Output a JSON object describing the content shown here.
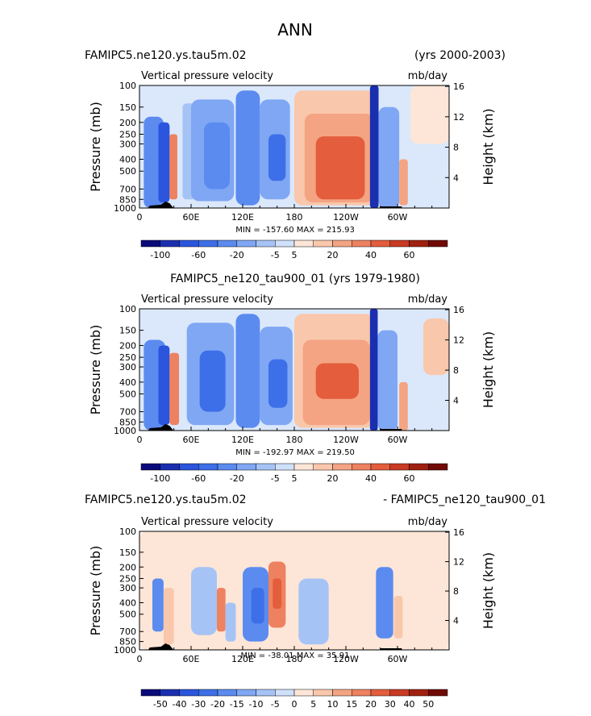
{
  "figure": {
    "title": "ANN",
    "colors": {
      "scale_main": [
        "#0a0a7a",
        "#1a2fb0",
        "#2a55dc",
        "#3d6fe8",
        "#5b8bef",
        "#7fa7f3",
        "#a6c3f6",
        "#cfe0fa",
        "#fde6d7",
        "#f9c7ab",
        "#f4a483",
        "#ee8160",
        "#e45d3c",
        "#c83a22",
        "#a0200f",
        "#700a05"
      ],
      "scale_diff": [
        "#0a0a7a",
        "#1a2fb0",
        "#2a55dc",
        "#3d6fe8",
        "#5b8bef",
        "#7fa7f3",
        "#a6c3f6",
        "#cfe0fa",
        "#fde6d7",
        "#f9c7ab",
        "#f4a483",
        "#ee8160",
        "#e45d3c",
        "#c83a22",
        "#a0200f",
        "#700a05"
      ]
    }
  },
  "chart_data": [
    {
      "type": "heatmap",
      "header_left": "FAMIPC5.ne120.ys.tau5m.02",
      "header_right": "(yrs 2000-2003)",
      "title": "Vertical pressure velocity",
      "units": "mb/day",
      "xlabel": "",
      "ylabel": "Pressure (mb)",
      "ylabel_right": "Height (km)",
      "xticks": [
        "0",
        "60E",
        "120E",
        "180",
        "120W",
        "60W"
      ],
      "xlim": [
        0,
        360
      ],
      "x_tick_values": [
        0,
        60,
        120,
        180,
        240,
        300
      ],
      "yticks": [
        "100",
        "150",
        "200",
        "250",
        "300",
        "400",
        "500",
        "700",
        "850",
        "1000"
      ],
      "y_tick_values": [
        100,
        150,
        200,
        250,
        300,
        400,
        500,
        700,
        850,
        1000
      ],
      "ylim": [
        100,
        1000
      ],
      "yticks_right": [
        "16",
        "12",
        "8",
        "4"
      ],
      "y_right_values": [
        16,
        12,
        8,
        4
      ],
      "stats": "MIN = -157.60   MAX = 215.93",
      "min": -157.6,
      "max": 215.93,
      "colorbar_labels": [
        "-100",
        "-60",
        "-20",
        "-5",
        "5",
        "20",
        "40",
        "60"
      ],
      "colorbar_key": "scale_main",
      "regions": [
        {
          "x0": 5,
          "x1": 28,
          "p0": 180,
          "p1": 1000,
          "v": -40
        },
        {
          "x0": 22,
          "x1": 35,
          "p0": 200,
          "p1": 900,
          "v": -80
        },
        {
          "x0": 35,
          "x1": 44,
          "p0": 250,
          "p1": 850,
          "v": 30
        },
        {
          "x0": 50,
          "x1": 65,
          "p0": 140,
          "p1": 850,
          "v": -10
        },
        {
          "x0": 60,
          "x1": 110,
          "p0": 130,
          "p1": 880,
          "v": -30
        },
        {
          "x0": 75,
          "x1": 105,
          "p0": 200,
          "p1": 700,
          "v": -55
        },
        {
          "x0": 112,
          "x1": 140,
          "p0": 110,
          "p1": 950,
          "v": -45
        },
        {
          "x0": 140,
          "x1": 175,
          "p0": 130,
          "p1": 850,
          "v": -35
        },
        {
          "x0": 150,
          "x1": 170,
          "p0": 250,
          "p1": 600,
          "v": -60
        },
        {
          "x0": 180,
          "x1": 275,
          "p0": 110,
          "p1": 950,
          "v": 8
        },
        {
          "x0": 192,
          "x1": 272,
          "p0": 170,
          "p1": 900,
          "v": 20
        },
        {
          "x0": 205,
          "x1": 262,
          "p0": 260,
          "p1": 850,
          "v": 35
        },
        {
          "x0": 268,
          "x1": 278,
          "p0": 100,
          "p1": 1000,
          "v": -100
        },
        {
          "x0": 278,
          "x1": 302,
          "p0": 150,
          "p1": 1000,
          "v": -35
        },
        {
          "x0": 302,
          "x1": 312,
          "p0": 400,
          "p1": 950,
          "v": 12
        },
        {
          "x0": 315,
          "x1": 360,
          "p0": 100,
          "p1": 300,
          "v": 5
        }
      ]
    },
    {
      "type": "heatmap",
      "header_center": "FAMIPC5_ne120_tau900_01 (yrs 1979-1980)",
      "title": "Vertical pressure velocity",
      "units": "mb/day",
      "xlabel": "",
      "ylabel": "Pressure (mb)",
      "ylabel_right": "Height (km)",
      "xticks": [
        "0",
        "60E",
        "120E",
        "180",
        "120W",
        "60W"
      ],
      "xlim": [
        0,
        360
      ],
      "x_tick_values": [
        0,
        60,
        120,
        180,
        240,
        300
      ],
      "yticks": [
        "100",
        "150",
        "200",
        "250",
        "300",
        "400",
        "500",
        "700",
        "850",
        "1000"
      ],
      "y_tick_values": [
        100,
        150,
        200,
        250,
        300,
        400,
        500,
        700,
        850,
        1000
      ],
      "ylim": [
        100,
        1000
      ],
      "yticks_right": [
        "16",
        "12",
        "8",
        "4"
      ],
      "y_right_values": [
        16,
        12,
        8,
        4
      ],
      "stats": "MIN = -192.97   MAX = 219.50",
      "min": -192.97,
      "max": 219.5,
      "colorbar_labels": [
        "-100",
        "-60",
        "-20",
        "-5",
        "5",
        "20",
        "40",
        "60"
      ],
      "colorbar_key": "scale_main",
      "regions": [
        {
          "x0": 5,
          "x1": 30,
          "p0": 180,
          "p1": 1000,
          "v": -40
        },
        {
          "x0": 22,
          "x1": 35,
          "p0": 200,
          "p1": 900,
          "v": -80
        },
        {
          "x0": 35,
          "x1": 46,
          "p0": 230,
          "p1": 900,
          "v": 30
        },
        {
          "x0": 55,
          "x1": 110,
          "p0": 130,
          "p1": 900,
          "v": -30
        },
        {
          "x0": 70,
          "x1": 100,
          "p0": 220,
          "p1": 700,
          "v": -60
        },
        {
          "x0": 112,
          "x1": 140,
          "p0": 110,
          "p1": 950,
          "v": -50
        },
        {
          "x0": 140,
          "x1": 178,
          "p0": 140,
          "p1": 900,
          "v": -35
        },
        {
          "x0": 150,
          "x1": 172,
          "p0": 260,
          "p1": 650,
          "v": -70
        },
        {
          "x0": 180,
          "x1": 272,
          "p0": 110,
          "p1": 950,
          "v": 8
        },
        {
          "x0": 190,
          "x1": 268,
          "p0": 180,
          "p1": 900,
          "v": 20
        },
        {
          "x0": 205,
          "x1": 255,
          "p0": 280,
          "p1": 550,
          "v": 35
        },
        {
          "x0": 268,
          "x1": 277,
          "p0": 100,
          "p1": 1000,
          "v": -100
        },
        {
          "x0": 277,
          "x1": 300,
          "p0": 150,
          "p1": 1000,
          "v": -35
        },
        {
          "x0": 302,
          "x1": 312,
          "p0": 400,
          "p1": 1000,
          "v": 15
        },
        {
          "x0": 330,
          "x1": 360,
          "p0": 120,
          "p1": 350,
          "v": 6
        }
      ]
    },
    {
      "type": "heatmap",
      "header_left": "FAMIPC5.ne120.ys.tau5m.02",
      "header_right": "- FAMIPC5_ne120_tau900_01",
      "title": "Vertical pressure velocity",
      "units": "mb/day",
      "xlabel": "",
      "ylabel": "Pressure (mb)",
      "ylabel_right": "Height (km)",
      "xticks": [
        "0",
        "60E",
        "120E",
        "180",
        "120W",
        "60W"
      ],
      "xlim": [
        0,
        360
      ],
      "x_tick_values": [
        0,
        60,
        120,
        180,
        240,
        300
      ],
      "yticks": [
        "100",
        "150",
        "200",
        "250",
        "300",
        "400",
        "500",
        "700",
        "850",
        "1000"
      ],
      "y_tick_values": [
        100,
        150,
        200,
        250,
        300,
        400,
        500,
        700,
        850,
        1000
      ],
      "ylim": [
        100,
        1000
      ],
      "yticks_right": [
        "16",
        "12",
        "8",
        "4"
      ],
      "y_right_values": [
        16,
        12,
        8,
        4
      ],
      "stats": "MIN = -38.01   MAX = 35.91",
      "min": -38.01,
      "max": 35.91,
      "colorbar_labels": [
        "-50",
        "-40",
        "-30",
        "-20",
        "-15",
        "-10",
        "-5",
        "0",
        "5",
        "10",
        "15",
        "20",
        "30",
        "40",
        "50"
      ],
      "colorbar_key": "scale_diff",
      "regions": [
        {
          "x0": 0,
          "x1": 360,
          "p0": 100,
          "p1": 1000,
          "v": 1
        },
        {
          "x0": 15,
          "x1": 28,
          "p0": 250,
          "p1": 700,
          "v": -15
        },
        {
          "x0": 28,
          "x1": 40,
          "p0": 300,
          "p1": 900,
          "v": 8
        },
        {
          "x0": 60,
          "x1": 90,
          "p0": 200,
          "p1": 750,
          "v": -6
        },
        {
          "x0": 90,
          "x1": 100,
          "p0": 300,
          "p1": 700,
          "v": 18
        },
        {
          "x0": 100,
          "x1": 112,
          "p0": 400,
          "p1": 850,
          "v": -6
        },
        {
          "x0": 120,
          "x1": 150,
          "p0": 200,
          "p1": 850,
          "v": -18
        },
        {
          "x0": 130,
          "x1": 145,
          "p0": 300,
          "p1": 600,
          "v": -28
        },
        {
          "x0": 150,
          "x1": 170,
          "p0": 180,
          "p1": 650,
          "v": 18
        },
        {
          "x0": 155,
          "x1": 165,
          "p0": 250,
          "p1": 450,
          "v": 28
        },
        {
          "x0": 185,
          "x1": 220,
          "p0": 250,
          "p1": 900,
          "v": -5
        },
        {
          "x0": 230,
          "x1": 265,
          "p0": 200,
          "p1": 800,
          "v": 5
        },
        {
          "x0": 275,
          "x1": 295,
          "p0": 200,
          "p1": 800,
          "v": -18
        },
        {
          "x0": 296,
          "x1": 306,
          "p0": 350,
          "p1": 800,
          "v": 8
        }
      ]
    }
  ]
}
